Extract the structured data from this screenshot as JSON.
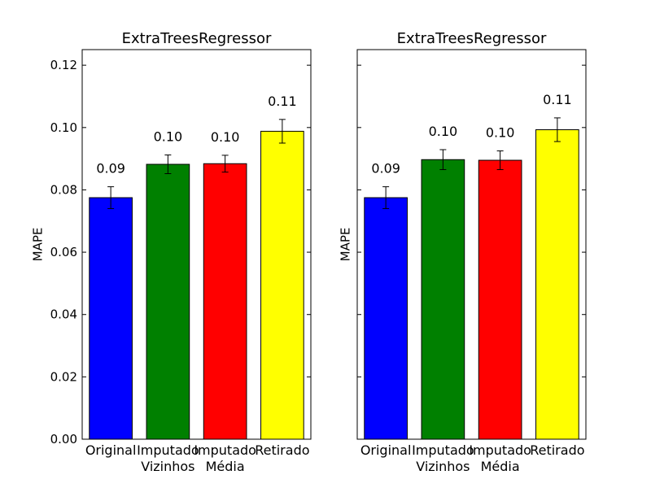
{
  "chart_data": [
    {
      "type": "bar",
      "title": "ExtraTreesRegressor",
      "ylabel": "MAPE",
      "xlabel": "",
      "ylim": [
        0,
        0.125
      ],
      "yticks": [
        "0.00",
        "0.02",
        "0.04",
        "0.06",
        "0.08",
        "0.10",
        "0.12"
      ],
      "show_ytick_labels": true,
      "categories": [
        [
          "Original"
        ],
        [
          "Imputado",
          "Vizinhos"
        ],
        [
          "Imputado",
          "Média"
        ],
        [
          "Retirado"
        ]
      ],
      "values": [
        0.0775,
        0.0882,
        0.0884,
        0.0988
      ],
      "errors": [
        0.0035,
        0.003,
        0.0027,
        0.0038
      ],
      "data_labels": [
        "0.09",
        "0.10",
        "0.10",
        "0.11"
      ],
      "colors": [
        "#0000ff",
        "#008000",
        "#ff0000",
        "#ffff00"
      ]
    },
    {
      "type": "bar",
      "title": "ExtraTreesRegressor",
      "ylabel": "MAPE",
      "xlabel": "",
      "ylim": [
        0,
        0.125
      ],
      "yticks": [
        "0.00",
        "0.02",
        "0.04",
        "0.06",
        "0.08",
        "0.10",
        "0.12"
      ],
      "show_ytick_labels": false,
      "categories": [
        [
          "Original"
        ],
        [
          "Imputado",
          "Vizinhos"
        ],
        [
          "Imputado",
          "Média"
        ],
        [
          "Retirado"
        ]
      ],
      "values": [
        0.0775,
        0.0897,
        0.0895,
        0.0993
      ],
      "errors": [
        0.0035,
        0.0032,
        0.003,
        0.0038
      ],
      "data_labels": [
        "0.09",
        "0.10",
        "0.10",
        "0.11"
      ],
      "colors": [
        "#0000ff",
        "#008000",
        "#ff0000",
        "#ffff00"
      ]
    }
  ]
}
